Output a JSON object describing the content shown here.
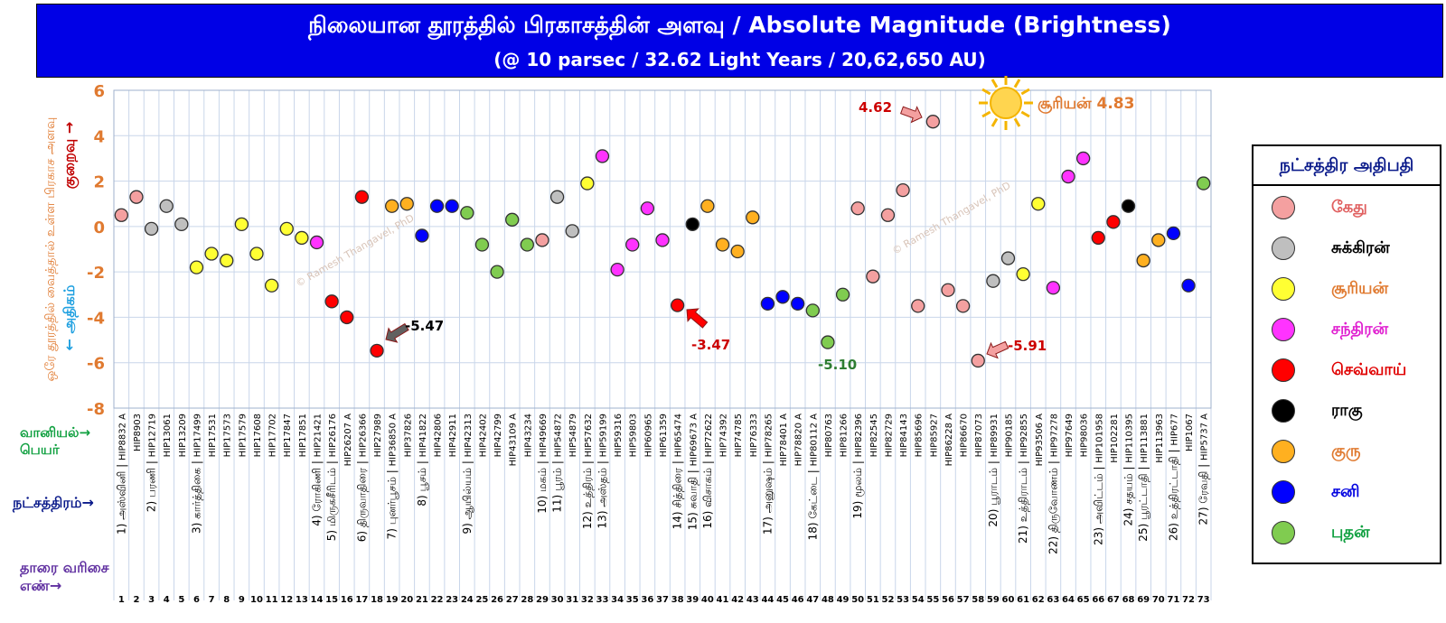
{
  "header": {
    "title_line1": "நிலையான தூரத்தில் பிரகாசத்தின் அளவு / Absolute Magnitude (Brightness)",
    "title_line2": "(@ 10 parsec / 32.62 Light Years / 20,62,650 AU)"
  },
  "y_axis": {
    "label": "ஒரே தூரத்தில் வைத்தால் உள்ள பிரகாச அளவு",
    "less_label": "குறைவு →",
    "more_label": "← அதிகம்"
  },
  "row_labels": {
    "hip": "வானியல்→ பெயர்",
    "nakshatra": "நட்சத்திரம்→",
    "order": "தாரை வரிசை எண்→"
  },
  "watermark": "© Ramesh Thangavel, PhD",
  "sun_annotation": "சூரியன் 4.83",
  "legend": {
    "title": "நட்சத்திர அதிபதி",
    "items": [
      {
        "label": "கேது",
        "color": "#f4a0a0",
        "text_color": "#e06060"
      },
      {
        "label": "சுக்கிரன்",
        "color": "#bfbfbf",
        "text_color": "#000000"
      },
      {
        "label": "சூரியன்",
        "color": "#ffff33",
        "text_color": "#e07a30"
      },
      {
        "label": "சந்திரன்",
        "color": "#ff33ff",
        "text_color": "#e020d0"
      },
      {
        "label": "செவ்வாய்",
        "color": "#ff0000",
        "text_color": "#e00000"
      },
      {
        "label": "ராகு",
        "color": "#000000",
        "text_color": "#000000"
      },
      {
        "label": "குரு",
        "color": "#ffb020",
        "text_color": "#e07a30"
      },
      {
        "label": "சனி",
        "color": "#0000ff",
        "text_color": "#0000e0"
      },
      {
        "label": "புதன்",
        "color": "#80cc50",
        "text_color": "#10a040"
      }
    ]
  },
  "chart_data": {
    "type": "scatter",
    "title": "Absolute Magnitude (Brightness)",
    "ylim": [
      -8,
      6
    ],
    "y_ticks": [
      6,
      4,
      2,
      0,
      -2,
      -4,
      -6,
      -8
    ],
    "grid": true,
    "legend_position": "right",
    "annotations": [
      {
        "x": 18,
        "text": "-5.47",
        "color": "#000000"
      },
      {
        "x": 38,
        "text": "-3.47",
        "color": "#cc0000"
      },
      {
        "x": 48,
        "text": "-5.10",
        "color": "#2e7d32"
      },
      {
        "x": 55,
        "text": "4.62",
        "color": "#cc0000"
      },
      {
        "x": 58,
        "text": "-5.91",
        "color": "#cc0000"
      }
    ],
    "points": [
      {
        "x": 1,
        "y": 0.5,
        "color": "#f4a0a0",
        "hip": "HIP8832 A"
      },
      {
        "x": 2,
        "y": 1.3,
        "color": "#f4a0a0",
        "hip": "HIP8903"
      },
      {
        "x": 3,
        "y": -0.1,
        "color": "#bfbfbf",
        "hip": "HIP12719"
      },
      {
        "x": 4,
        "y": 0.9,
        "color": "#bfbfbf",
        "hip": "HIP13061"
      },
      {
        "x": 5,
        "y": 0.1,
        "color": "#bfbfbf",
        "hip": "HIP13209"
      },
      {
        "x": 6,
        "y": -1.8,
        "color": "#ffff33",
        "hip": "HIP17499"
      },
      {
        "x": 7,
        "y": -1.2,
        "color": "#ffff33",
        "hip": "HIP17531"
      },
      {
        "x": 8,
        "y": -1.5,
        "color": "#ffff33",
        "hip": "HIP17573"
      },
      {
        "x": 9,
        "y": 0.1,
        "color": "#ffff33",
        "hip": "HIP17579"
      },
      {
        "x": 10,
        "y": -1.2,
        "color": "#ffff33",
        "hip": "HIP17608"
      },
      {
        "x": 11,
        "y": -2.6,
        "color": "#ffff33",
        "hip": "HIP17702"
      },
      {
        "x": 12,
        "y": -0.1,
        "color": "#ffff33",
        "hip": "HIP17847"
      },
      {
        "x": 13,
        "y": -0.5,
        "color": "#ffff33",
        "hip": "HIP17851"
      },
      {
        "x": 14,
        "y": -0.7,
        "color": "#ff33ff",
        "hip": "HIP21421"
      },
      {
        "x": 15,
        "y": -3.3,
        "color": "#ff0000",
        "hip": "HIP26176"
      },
      {
        "x": 16,
        "y": -4.0,
        "color": "#ff0000",
        "hip": "HIP26207 A"
      },
      {
        "x": 17,
        "y": 1.3,
        "color": "#ff0000",
        "hip": "HIP26366"
      },
      {
        "x": 18,
        "y": -5.47,
        "color": "#ff0000",
        "hip": "HIP27989"
      },
      {
        "x": 19,
        "y": 0.9,
        "color": "#ffb020",
        "hip": "HIP36850 A"
      },
      {
        "x": 20,
        "y": 1.0,
        "color": "#ffb020",
        "hip": "HIP37826"
      },
      {
        "x": 21,
        "y": -0.4,
        "color": "#0000ff",
        "hip": "HIP41822"
      },
      {
        "x": 22,
        "y": 0.9,
        "color": "#0000ff",
        "hip": "HIP42806"
      },
      {
        "x": 23,
        "y": 0.9,
        "color": "#0000ff",
        "hip": "HIP42911"
      },
      {
        "x": 24,
        "y": 0.6,
        "color": "#80cc50",
        "hip": "HIP42313"
      },
      {
        "x": 25,
        "y": -0.8,
        "color": "#80cc50",
        "hip": "HIP42402"
      },
      {
        "x": 26,
        "y": -2.0,
        "color": "#80cc50",
        "hip": "HIP42799"
      },
      {
        "x": 27,
        "y": 0.3,
        "color": "#80cc50",
        "hip": "HIP43109 A"
      },
      {
        "x": 28,
        "y": -0.8,
        "color": "#80cc50",
        "hip": "HIP43234"
      },
      {
        "x": 29,
        "y": -0.6,
        "color": "#f4a0a0",
        "hip": "HIP49669"
      },
      {
        "x": 30,
        "y": 1.3,
        "color": "#bfbfbf",
        "hip": "HIP54872"
      },
      {
        "x": 31,
        "y": -0.2,
        "color": "#bfbfbf",
        "hip": "HIP54879"
      },
      {
        "x": 32,
        "y": 1.9,
        "color": "#ffff33",
        "hip": "HIP57632"
      },
      {
        "x": 33,
        "y": 3.1,
        "color": "#ff33ff",
        "hip": "HIP59199"
      },
      {
        "x": 34,
        "y": -1.9,
        "color": "#ff33ff",
        "hip": "HIP59316"
      },
      {
        "x": 35,
        "y": -0.8,
        "color": "#ff33ff",
        "hip": "HIP59803"
      },
      {
        "x": 36,
        "y": 0.8,
        "color": "#ff33ff",
        "hip": "HIP60965"
      },
      {
        "x": 37,
        "y": -0.6,
        "color": "#ff33ff",
        "hip": "HIP61359"
      },
      {
        "x": 38,
        "y": -3.47,
        "color": "#ff0000",
        "hip": "HIP65474"
      },
      {
        "x": 39,
        "y": 0.1,
        "color": "#000000",
        "hip": "HIP69673 A"
      },
      {
        "x": 40,
        "y": 0.9,
        "color": "#ffb020",
        "hip": "HIP72622"
      },
      {
        "x": 41,
        "y": -0.8,
        "color": "#ffb020",
        "hip": "HIP74392"
      },
      {
        "x": 42,
        "y": -1.1,
        "color": "#ffb020",
        "hip": "HIP74785"
      },
      {
        "x": 43,
        "y": 0.4,
        "color": "#ffb020",
        "hip": "HIP76333"
      },
      {
        "x": 44,
        "y": -3.4,
        "color": "#0000ff",
        "hip": "HIP78265"
      },
      {
        "x": 45,
        "y": -3.1,
        "color": "#0000ff",
        "hip": "HIP78401 A"
      },
      {
        "x": 46,
        "y": -3.4,
        "color": "#0000ff",
        "hip": "HIP78820 A"
      },
      {
        "x": 47,
        "y": -3.7,
        "color": "#80cc50",
        "hip": "HIP80112 A"
      },
      {
        "x": 48,
        "y": -5.1,
        "color": "#80cc50",
        "hip": "HIP80763"
      },
      {
        "x": 49,
        "y": -3.0,
        "color": "#80cc50",
        "hip": "HIP81266"
      },
      {
        "x": 50,
        "y": 0.8,
        "color": "#f4a0a0",
        "hip": "HIP82396"
      },
      {
        "x": 51,
        "y": -2.2,
        "color": "#f4a0a0",
        "hip": "HIP82545"
      },
      {
        "x": 52,
        "y": 0.5,
        "color": "#f4a0a0",
        "hip": "HIP82729"
      },
      {
        "x": 53,
        "y": 1.6,
        "color": "#f4a0a0",
        "hip": "HIP84143"
      },
      {
        "x": 54,
        "y": -3.5,
        "color": "#f4a0a0",
        "hip": "HIP85696"
      },
      {
        "x": 55,
        "y": 4.62,
        "color": "#f4a0a0",
        "hip": "HIP85927"
      },
      {
        "x": 56,
        "y": -2.8,
        "color": "#f4a0a0",
        "hip": "HIP86228 A"
      },
      {
        "x": 57,
        "y": -3.5,
        "color": "#f4a0a0",
        "hip": "HIP86670"
      },
      {
        "x": 58,
        "y": -5.91,
        "color": "#f4a0a0",
        "hip": "HIP87073"
      },
      {
        "x": 59,
        "y": -2.4,
        "color": "#bfbfbf",
        "hip": "HIP89931"
      },
      {
        "x": 60,
        "y": -1.4,
        "color": "#bfbfbf",
        "hip": "HIP90185"
      },
      {
        "x": 61,
        "y": -2.1,
        "color": "#ffff33",
        "hip": "HIP92855"
      },
      {
        "x": 62,
        "y": 1.0,
        "color": "#ffff33",
        "hip": "HIP93506 A"
      },
      {
        "x": 63,
        "y": -2.7,
        "color": "#ff33ff",
        "hip": "HIP97278"
      },
      {
        "x": 64,
        "y": 2.2,
        "color": "#ff33ff",
        "hip": "HIP97649"
      },
      {
        "x": 65,
        "y": 3.0,
        "color": "#ff33ff",
        "hip": "HIP98036"
      },
      {
        "x": 66,
        "y": -0.5,
        "color": "#ff0000",
        "hip": "HIP101958"
      },
      {
        "x": 67,
        "y": 0.2,
        "color": "#ff0000",
        "hip": "HIP102281"
      },
      {
        "x": 68,
        "y": 0.9,
        "color": "#000000",
        "hip": "HIP110395"
      },
      {
        "x": 69,
        "y": -1.5,
        "color": "#ffb020",
        "hip": "HIP113881"
      },
      {
        "x": 70,
        "y": -0.6,
        "color": "#ffb020",
        "hip": "HIP113963"
      },
      {
        "x": 71,
        "y": -0.3,
        "color": "#0000ff",
        "hip": "HIP677"
      },
      {
        "x": 72,
        "y": -2.6,
        "color": "#0000ff",
        "hip": "HIP1067"
      },
      {
        "x": 73,
        "y": 1.9,
        "color": "#80cc50",
        "hip": "HIP5737 A"
      }
    ],
    "nakshatras": [
      {
        "name": "1) அஸ்வினி",
        "start": 1,
        "end": 2
      },
      {
        "name": "2) பரணி",
        "start": 3,
        "end": 5
      },
      {
        "name": "3) கார்த்திகை",
        "start": 6,
        "end": 13
      },
      {
        "name": "4) ரோகிணி",
        "start": 14,
        "end": 14
      },
      {
        "name": "5) மிருகசீரிடம்",
        "start": 15,
        "end": 16
      },
      {
        "name": "6) திருவாதிரை",
        "start": 17,
        "end": 18
      },
      {
        "name": "7) புனர்பூசம்",
        "start": 19,
        "end": 20
      },
      {
        "name": "8) பூசம்",
        "start": 21,
        "end": 23
      },
      {
        "name": "9) ஆயில்யம்",
        "start": 24,
        "end": 28
      },
      {
        "name": "10) மகம்",
        "start": 29,
        "end": 29
      },
      {
        "name": "11) பூரம்",
        "start": 30,
        "end": 31
      },
      {
        "name": "12) உத்திரம்",
        "start": 32,
        "end": 32
      },
      {
        "name": "13) அஸ்தம்",
        "start": 33,
        "end": 37
      },
      {
        "name": "14) சித்திரை",
        "start": 38,
        "end": 38
      },
      {
        "name": "15) சுவாதி",
        "start": 39,
        "end": 39
      },
      {
        "name": "16) விசாகம்",
        "start": 40,
        "end": 43
      },
      {
        "name": "17) அனுஷம்",
        "start": 44,
        "end": 46
      },
      {
        "name": "18) கேட்டை",
        "start": 47,
        "end": 49
      },
      {
        "name": "19) மூலம்",
        "start": 50,
        "end": 58
      },
      {
        "name": "20) பூராடம்",
        "start": 59,
        "end": 60
      },
      {
        "name": "21) உத்திராடம்",
        "start": 61,
        "end": 62
      },
      {
        "name": "22) திருவோணம்",
        "start": 63,
        "end": 65
      },
      {
        "name": "23) அவிட்டம்",
        "start": 66,
        "end": 67
      },
      {
        "name": "24) சதயம்",
        "start": 68,
        "end": 68
      },
      {
        "name": "25) பூரட்டாதி",
        "start": 69,
        "end": 70
      },
      {
        "name": "26) உத்திரட்டாதி",
        "start": 71,
        "end": 72
      },
      {
        "name": "27) ரேவதி",
        "start": 73,
        "end": 73
      }
    ]
  }
}
